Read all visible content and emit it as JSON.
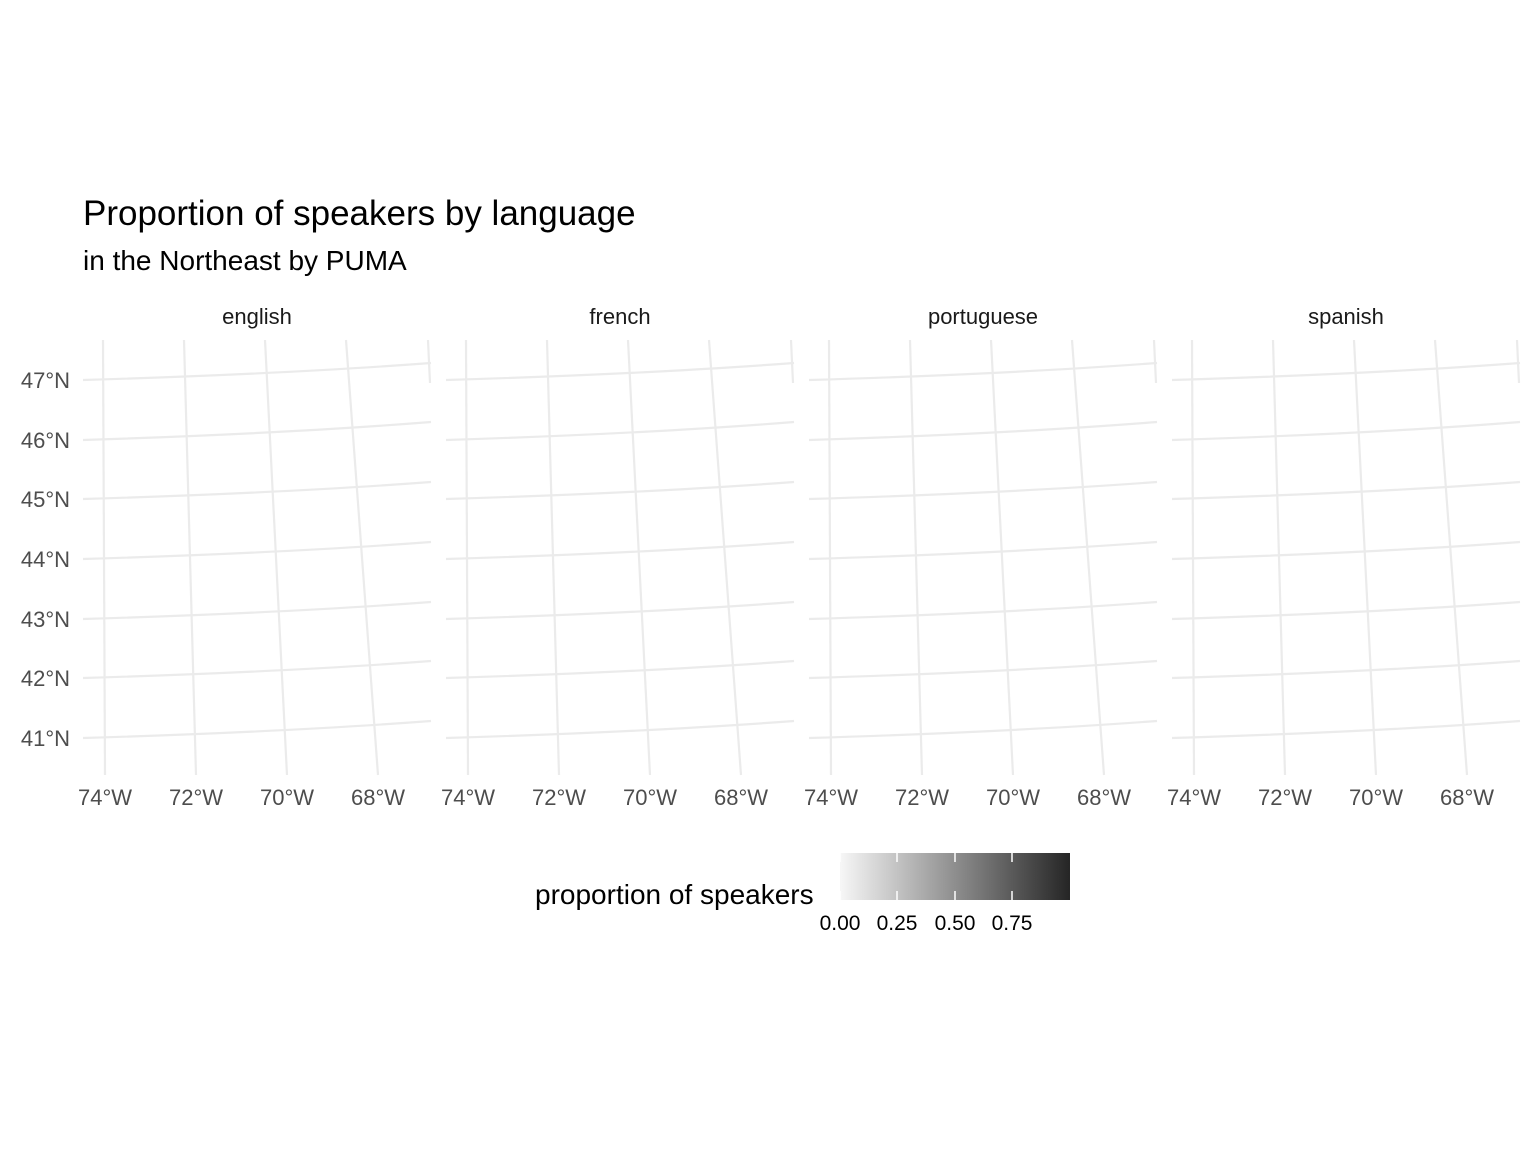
{
  "title": "Proportion of speakers by language",
  "subtitle": "in the Northeast by PUMA",
  "panels": [
    {
      "label": "english"
    },
    {
      "label": "french"
    },
    {
      "label": "portuguese"
    },
    {
      "label": "spanish"
    }
  ],
  "axes": {
    "latitude_labels": [
      "47°N",
      "46°N",
      "45°N",
      "44°N",
      "43°N",
      "42°N",
      "41°N"
    ],
    "longitude_labels": [
      "74°W",
      "72°W",
      "70°W",
      "68°W"
    ]
  },
  "legend": {
    "title": "proportion of speakers",
    "breaks": [
      "0.00",
      "0.25",
      "0.50",
      "0.75"
    ],
    "color_low": "#f7f7f7",
    "color_high": "#252525"
  },
  "colors": {
    "graticule": "#ebebeb",
    "axis_text": "#4d4d4d",
    "strip_text": "#1a1a1a"
  }
}
